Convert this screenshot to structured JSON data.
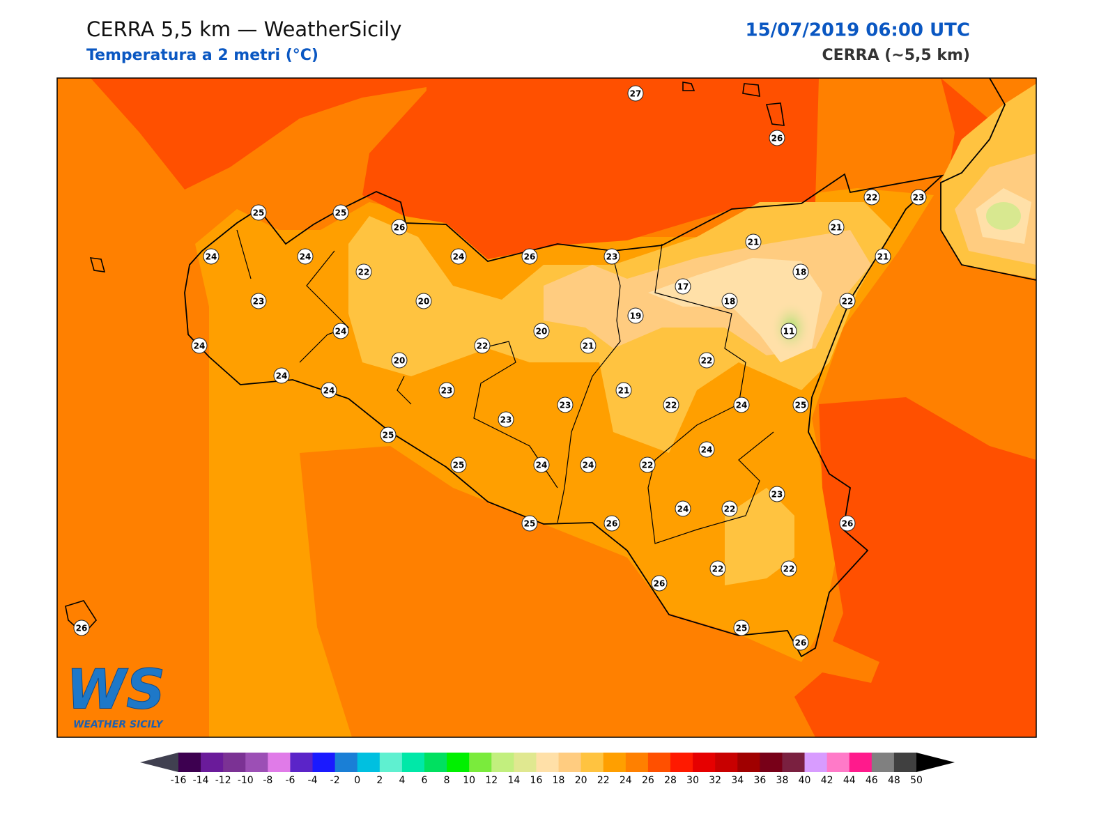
{
  "header": {
    "title": "CERRA 5,5 km — WeatherSicily",
    "subtitle": "Temperatura a 2 metri (°C)",
    "date": "15/07/2019 06:00 UTC",
    "source": "CERRA (~5,5 km)"
  },
  "stations": [
    27,
    26,
    25,
    25,
    26,
    24,
    24,
    24,
    26,
    23,
    21,
    21,
    22,
    23,
    21,
    22,
    18,
    17,
    23,
    20,
    18,
    22,
    19,
    24,
    20,
    11,
    24,
    22,
    21,
    20,
    22,
    24,
    24,
    23,
    21,
    23,
    22,
    24,
    25,
    23,
    25,
    24,
    25,
    24,
    24,
    22,
    23,
    24,
    22,
    25,
    26,
    26,
    22,
    22,
    26,
    26,
    25,
    26
  ],
  "colorbar": {
    "ticks": [
      -16,
      -14,
      -12,
      -10,
      -8,
      -6,
      -4,
      -2,
      0,
      2,
      4,
      6,
      8,
      10,
      12,
      14,
      16,
      18,
      20,
      22,
      24,
      26,
      28,
      30,
      32,
      34,
      36,
      38,
      40,
      42,
      44,
      46,
      48,
      50
    ],
    "colors": [
      "#3d0050",
      "#6a1b9a",
      "#7b3294",
      "#9c4fb5",
      "#e07be8",
      "#5b24c8",
      "#1a1aff",
      "#1a7fd6",
      "#00c0e0",
      "#5ff0d0",
      "#00e8a8",
      "#00e060",
      "#00f000",
      "#7aeb3c",
      "#c2ef7e",
      "#e0e890",
      "#ffe0a8",
      "#ffcc80",
      "#ffc340",
      "#ff9f00",
      "#ff8000",
      "#ff5000",
      "#ff1a00",
      "#e60000",
      "#c80000",
      "#a00000",
      "#780018",
      "#7a2040",
      "#d89cff",
      "#ff7ac8",
      "#ff1a8c",
      "#808080",
      "#404040"
    ],
    "under_color": "#404050",
    "over_color": "#000000"
  },
  "logo": {
    "initials": "WS",
    "name": "WEATHER SICILY"
  }
}
